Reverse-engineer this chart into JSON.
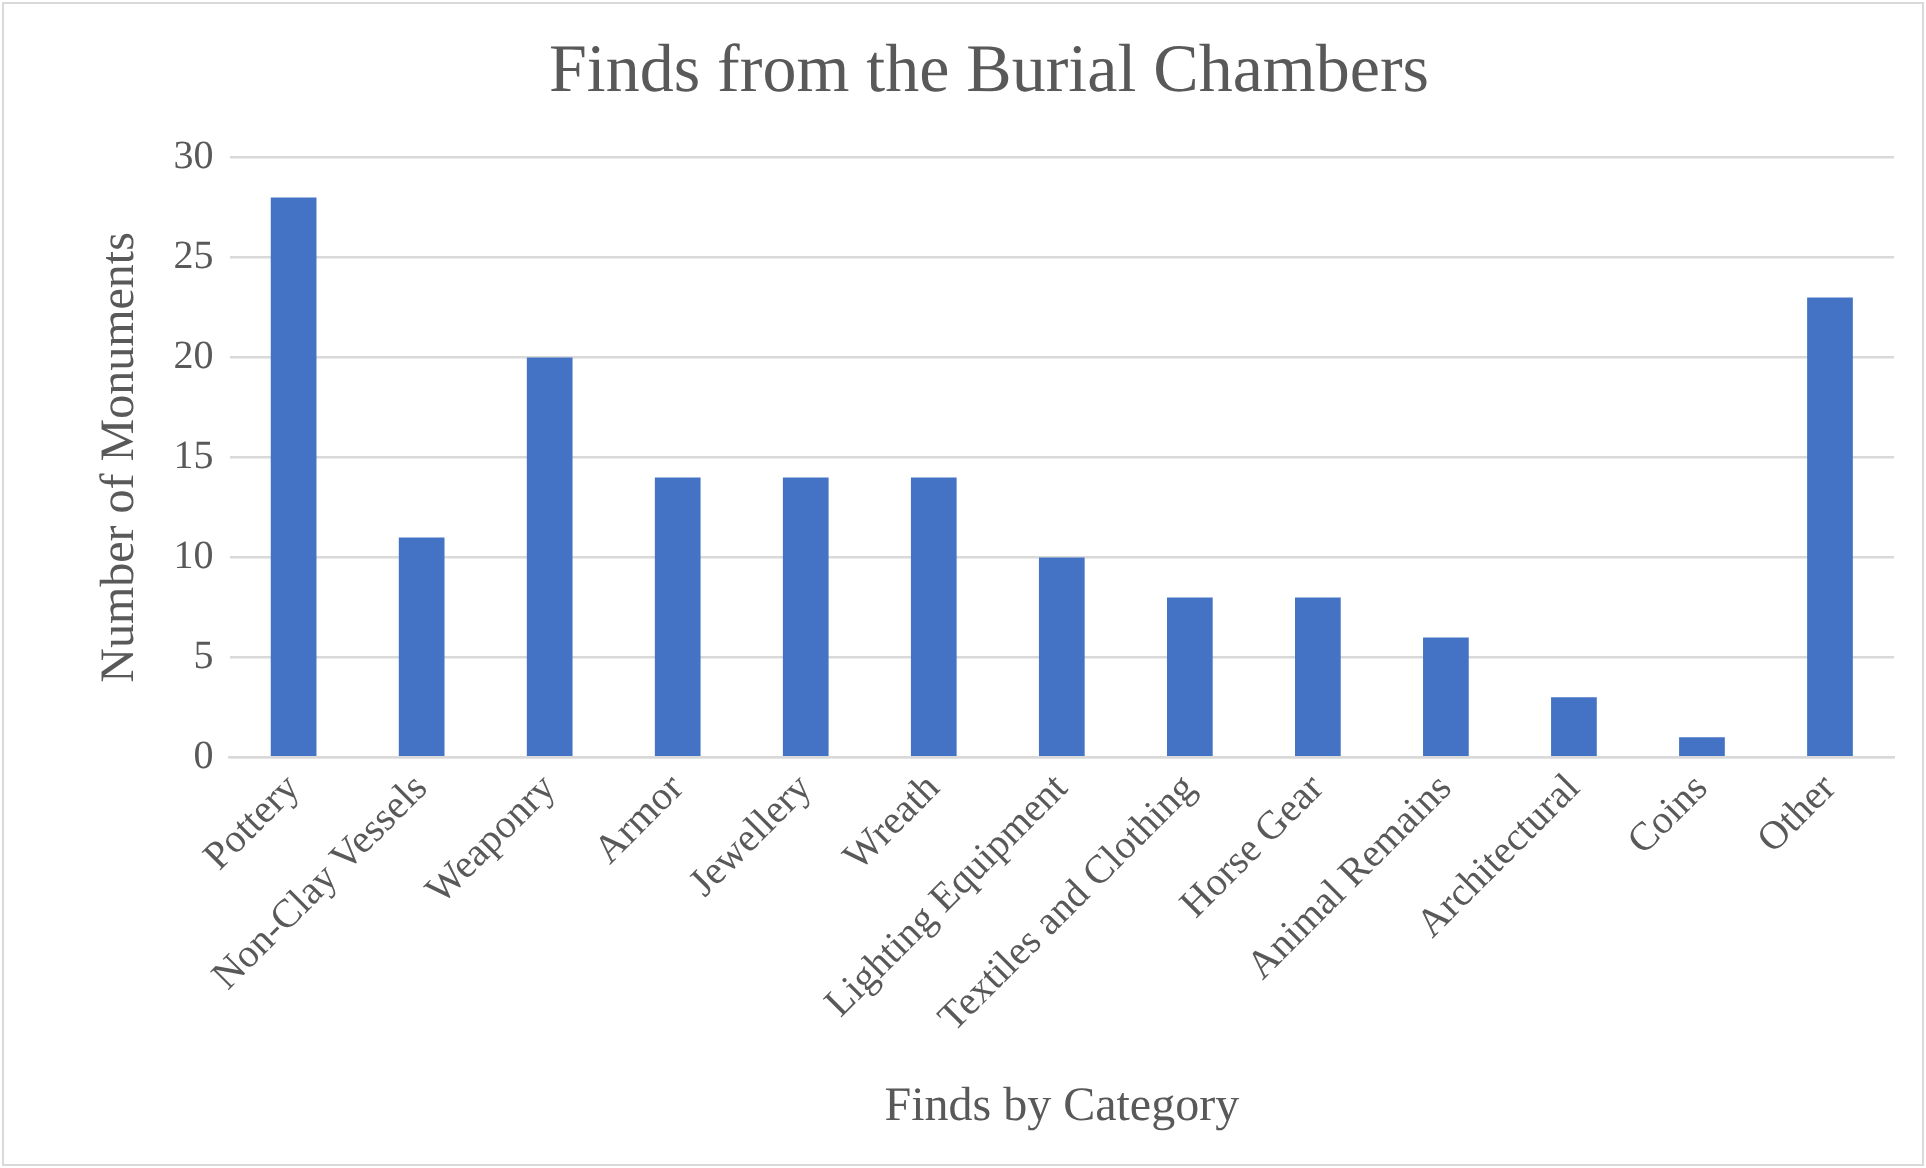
{
  "chart_data": {
    "type": "bar",
    "title": "Finds from the Burial Chambers",
    "xlabel": "Finds by Category",
    "ylabel": "Number of Monuments",
    "categories": [
      "Pottery",
      "Non-Clay Vessels",
      "Weaponry",
      "Armor",
      "Jewellery",
      "Wreath",
      "Lighting Equipment",
      "Textiles and Clothing",
      "Horse Gear",
      "Animal Remains",
      "Architectural",
      "Coins",
      "Other"
    ],
    "values": [
      28,
      11,
      20,
      14,
      14,
      14,
      10,
      8,
      8,
      6,
      3,
      1,
      23
    ],
    "color": "#4472c4",
    "ylim": [
      0,
      30
    ],
    "yticks": [
      0,
      5,
      10,
      15,
      20,
      25,
      30
    ],
    "grid": "y",
    "legend": false
  }
}
